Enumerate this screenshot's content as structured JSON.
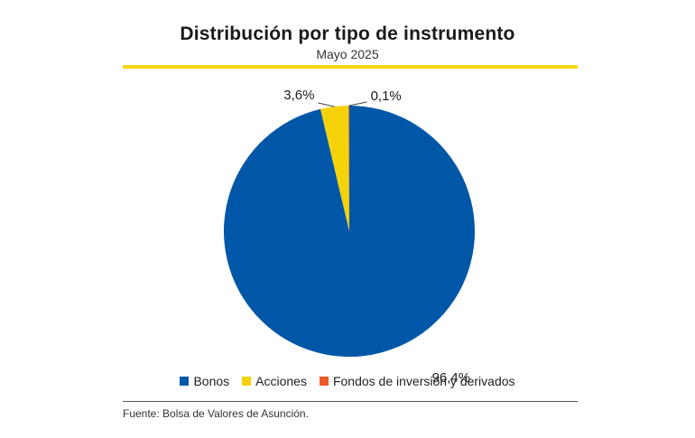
{
  "header": {
    "title": "Distribución por tipo de instrumento",
    "subtitle": "Mayo 2025"
  },
  "colors": {
    "accent_rule": "#F7D418",
    "bonos": "#0057A8",
    "acciones": "#F5D20A",
    "fondos": "#EE5A24"
  },
  "chart_data": {
    "type": "pie",
    "title": "Distribución por tipo de instrumento",
    "subtitle": "Mayo 2025",
    "slices": [
      {
        "name": "Bonos",
        "value": 96.4,
        "label": "96,4%",
        "color": "#0057A8"
      },
      {
        "name": "Acciones",
        "value": 3.6,
        "label": "3,6%",
        "color": "#F5D20A"
      },
      {
        "name": "Fondos de inversión y derivados",
        "value": 0.1,
        "label": "0,1%",
        "color": "#EE5A24"
      }
    ],
    "legend": "bottom-center"
  },
  "footer": {
    "source": "Fuente: Bolsa de Valores de Asunción."
  }
}
